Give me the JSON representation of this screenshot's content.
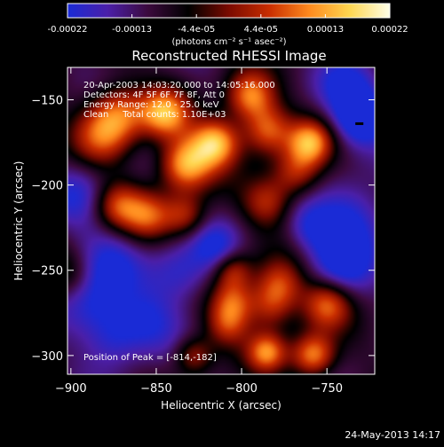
{
  "colorbar": {
    "tick_labels": [
      "-0.00022",
      "-0.00013",
      "-4.4e-05",
      "4.4e-05",
      "0.00013",
      "0.00022"
    ],
    "units_text": "(photons cm⁻² s⁻¹ asec⁻²)",
    "value_min": -0.00022,
    "value_max": 0.00022,
    "colors": [
      "#1a2bd6",
      "#4b1fa8",
      "#3b0a3d",
      "#000000",
      "#7a0a00",
      "#c82d00",
      "#ff8a1e",
      "#ffd650",
      "#ffffe8"
    ]
  },
  "chart_data": {
    "type": "heatmap",
    "title": "Reconstructed RHESSI Image",
    "xlabel": "Heliocentric X (arcsec)",
    "ylabel": "Heliocentric Y (arcsec)",
    "xlim": [
      -902,
      -722
    ],
    "ylim": [
      -311,
      -131
    ],
    "x_ticks": [
      -900,
      -850,
      -800,
      -750
    ],
    "y_ticks": [
      -150,
      -200,
      -250,
      -300
    ],
    "annotations": [
      "20-Apr-2003 14:03:20.000 to 14:05:16.000",
      "Detectors: 4F 5F 6F 7F 8F, Att 0",
      "Energy Range: 12.0 - 25.0 keV",
      "Clean     Total counts: 1.10E+03"
    ],
    "peak_label": "Position of Peak = [-814,-182]",
    "peak": [
      -814,
      -182
    ],
    "marker": [
      -731,
      -164
    ],
    "blobs": [
      {
        "x": -833,
        "y": -188,
        "a": 1.0,
        "s": 11
      },
      {
        "x": -815,
        "y": -175,
        "a": 1.0,
        "s": 10
      },
      {
        "x": -845,
        "y": -158,
        "a": 0.9,
        "s": 10
      },
      {
        "x": -872,
        "y": -158,
        "a": 0.75,
        "s": 12
      },
      {
        "x": -882,
        "y": -172,
        "a": 0.55,
        "s": 12
      },
      {
        "x": -873,
        "y": -212,
        "a": 0.65,
        "s": 10
      },
      {
        "x": -855,
        "y": -218,
        "a": 0.6,
        "s": 10
      },
      {
        "x": -833,
        "y": -218,
        "a": 0.55,
        "s": 9
      },
      {
        "x": -795,
        "y": -148,
        "a": 0.85,
        "s": 10
      },
      {
        "x": -785,
        "y": -168,
        "a": 0.75,
        "s": 10
      },
      {
        "x": -760,
        "y": -175,
        "a": 0.85,
        "s": 9
      },
      {
        "x": -768,
        "y": -193,
        "a": 0.6,
        "s": 10
      },
      {
        "x": -785,
        "y": -210,
        "a": 0.55,
        "s": 10
      },
      {
        "x": -778,
        "y": -258,
        "a": 0.6,
        "s": 10
      },
      {
        "x": -750,
        "y": -270,
        "a": 0.7,
        "s": 10
      },
      {
        "x": -783,
        "y": -272,
        "a": 0.55,
        "s": 10
      },
      {
        "x": -805,
        "y": -268,
        "a": 0.6,
        "s": 9
      },
      {
        "x": -808,
        "y": -282,
        "a": 0.55,
        "s": 9
      },
      {
        "x": -758,
        "y": -300,
        "a": 0.9,
        "s": 9
      },
      {
        "x": -785,
        "y": -298,
        "a": 0.8,
        "s": 8
      },
      {
        "x": -828,
        "y": -300,
        "a": 0.55,
        "s": 8
      },
      {
        "x": -805,
        "y": -250,
        "a": 0.55,
        "s": 8
      },
      {
        "x": -900,
        "y": -253,
        "a": 0.3,
        "s": 10
      },
      {
        "x": -835,
        "y": -252,
        "a": -0.45,
        "s": 13
      },
      {
        "x": -878,
        "y": -245,
        "a": -0.4,
        "s": 14
      },
      {
        "x": -888,
        "y": -270,
        "a": -0.45,
        "s": 14
      },
      {
        "x": -855,
        "y": -280,
        "a": -0.4,
        "s": 13
      },
      {
        "x": -875,
        "y": -290,
        "a": -0.4,
        "s": 12
      },
      {
        "x": -730,
        "y": -160,
        "a": -0.8,
        "s": 11
      },
      {
        "x": -738,
        "y": -140,
        "a": -0.45,
        "s": 12
      },
      {
        "x": -735,
        "y": -220,
        "a": -0.55,
        "s": 15
      },
      {
        "x": -742,
        "y": -245,
        "a": -0.5,
        "s": 13
      },
      {
        "x": -815,
        "y": -236,
        "a": -0.4,
        "s": 10
      },
      {
        "x": -895,
        "y": -205,
        "a": -0.35,
        "s": 13
      },
      {
        "x": -760,
        "y": -225,
        "a": -0.35,
        "s": 10
      }
    ]
  },
  "footer": {
    "date_text": "24-May-2013 14:17"
  }
}
